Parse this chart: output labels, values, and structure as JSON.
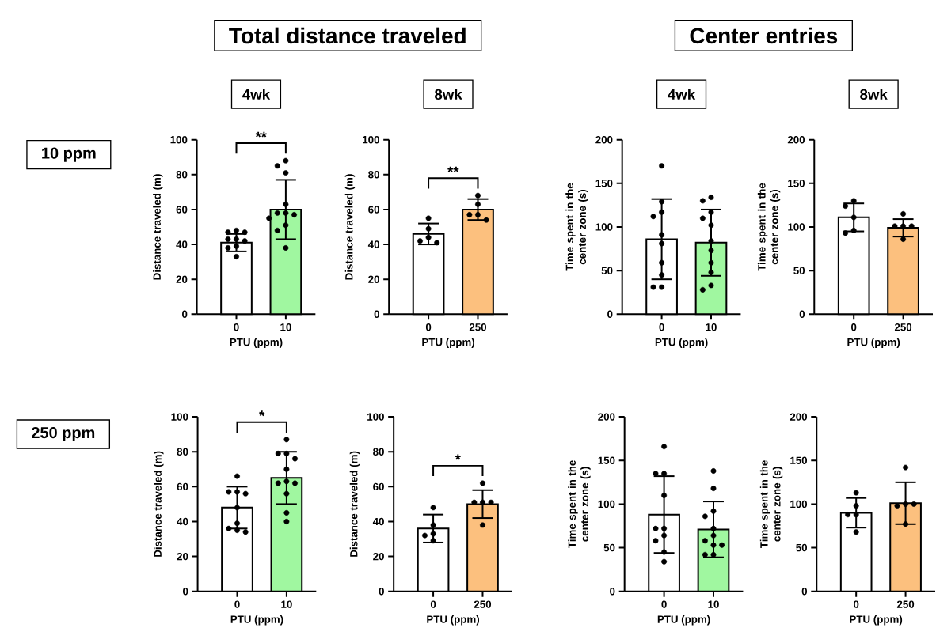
{
  "chart_data": [
    {
      "type": "bar",
      "title": "4wk",
      "categories": [
        "0",
        "10"
      ],
      "xlabel": "PTU (ppm)",
      "ylabel": "Distance traveled (m)",
      "ylim": [
        0,
        100
      ],
      "yticks": [
        0,
        20,
        40,
        60,
        80,
        100
      ],
      "annotations": [
        "**"
      ],
      "series": [
        {
          "type": "bar",
          "colors": [
            "#ffffff",
            "#a0f7a0"
          ],
          "values": [
            41,
            60
          ],
          "errors": [
            5,
            17
          ]
        },
        {
          "type": "scatter",
          "color": "#000000",
          "x": [
            "0",
            "0",
            "0",
            "0",
            "0",
            "0",
            "0",
            "0",
            "0",
            "10",
            "10",
            "10",
            "10",
            "10",
            "10",
            "10",
            "10",
            "10",
            "10",
            "10"
          ],
          "values": [
            48,
            47,
            47,
            43,
            43,
            42,
            39,
            38,
            33,
            88,
            85,
            81,
            63,
            58,
            58,
            57,
            55,
            51,
            48,
            38
          ]
        }
      ]
    },
    {
      "type": "bar",
      "title": "8wk",
      "categories": [
        "0",
        "250"
      ],
      "xlabel": "PTU (ppm)",
      "ylabel": "Distance traveled (m)",
      "ylim": [
        0,
        100
      ],
      "yticks": [
        0,
        20,
        40,
        60,
        80,
        100
      ],
      "annotations": [
        "**"
      ],
      "series": [
        {
          "type": "bar",
          "colors": [
            "#ffffff",
            "#fcc07e"
          ],
          "values": [
            46,
            60
          ],
          "errors": [
            6,
            6
          ]
        },
        {
          "type": "scatter",
          "color": "#000000",
          "x": [
            "0",
            "0",
            "0",
            "0",
            "0",
            "250",
            "250",
            "250",
            "250",
            "250"
          ],
          "values": [
            55,
            49,
            44,
            42,
            41,
            68,
            63,
            57,
            57,
            54
          ]
        }
      ]
    },
    {
      "type": "bar",
      "title": "4wk",
      "categories": [
        "0",
        "10"
      ],
      "xlabel": "PTU (ppm)",
      "ylabel": "Time spent in the center zone (s)",
      "ylim": [
        0,
        200
      ],
      "yticks": [
        0,
        50,
        100,
        150,
        200
      ],
      "series": [
        {
          "type": "bar",
          "colors": [
            "#ffffff",
            "#a0f7a0"
          ],
          "values": [
            86,
            82
          ],
          "errors": [
            46,
            38
          ]
        },
        {
          "type": "scatter",
          "color": "#000000",
          "x": [
            "0",
            "0",
            "0",
            "0",
            "0",
            "0",
            "0",
            "0",
            "0",
            "0",
            "10",
            "10",
            "10",
            "10",
            "10",
            "10",
            "10",
            "10",
            "10",
            "10",
            "10"
          ],
          "values": [
            170,
            129,
            117,
            112,
            91,
            81,
            59,
            45,
            31,
            31,
            134,
            130,
            117,
            110,
            102,
            84,
            73,
            59,
            48,
            33,
            28
          ]
        }
      ]
    },
    {
      "type": "bar",
      "title": "8wk",
      "categories": [
        "0",
        "250"
      ],
      "xlabel": "PTU (ppm)",
      "ylabel": "Time spent in the center zone (s)",
      "ylim": [
        0,
        200
      ],
      "yticks": [
        0,
        50,
        100,
        150,
        200
      ],
      "series": [
        {
          "type": "bar",
          "colors": [
            "#ffffff",
            "#fcc07e"
          ],
          "values": [
            111,
            99
          ],
          "errors": [
            16,
            10
          ]
        },
        {
          "type": "scatter",
          "color": "#000000",
          "x": [
            "0",
            "0",
            "0",
            "0",
            "0",
            "250",
            "250",
            "250",
            "250",
            "250"
          ],
          "values": [
            130,
            124,
            111,
            96,
            93,
            115,
            101,
            101,
            101,
            86
          ]
        }
      ]
    },
    {
      "type": "bar",
      "categories": [
        "0",
        "10"
      ],
      "xlabel": "PTU (ppm)",
      "ylabel": "Distance traveled (m)",
      "ylim": [
        0,
        100
      ],
      "yticks": [
        0,
        20,
        40,
        60,
        80,
        100
      ],
      "annotations": [
        "*"
      ],
      "series": [
        {
          "type": "bar",
          "colors": [
            "#ffffff",
            "#a0f7a0"
          ],
          "values": [
            48,
            65
          ],
          "errors": [
            12,
            15
          ]
        },
        {
          "type": "scatter",
          "color": "#000000",
          "x": [
            "0",
            "0",
            "0",
            "0",
            "0",
            "0",
            "0",
            "0",
            "0",
            "10",
            "10",
            "10",
            "10",
            "10",
            "10",
            "10",
            "10",
            "10",
            "10",
            "10"
          ],
          "values": [
            66,
            57,
            57,
            56,
            48,
            39,
            36,
            35,
            34,
            87,
            79,
            79,
            76,
            70,
            63,
            62,
            62,
            56,
            45,
            40
          ]
        }
      ]
    },
    {
      "type": "bar",
      "categories": [
        "0",
        "250"
      ],
      "xlabel": "PTU (ppm)",
      "ylabel": "Distance traveled (m)",
      "ylim": [
        0,
        100
      ],
      "yticks": [
        0,
        20,
        40,
        60,
        80,
        100
      ],
      "annotations": [
        "*"
      ],
      "series": [
        {
          "type": "bar",
          "colors": [
            "#ffffff",
            "#fcc07e"
          ],
          "values": [
            36,
            50
          ],
          "errors": [
            8,
            8
          ]
        },
        {
          "type": "scatter",
          "color": "#000000",
          "x": [
            "0",
            "0",
            "0",
            "0",
            "0",
            "250",
            "250",
            "250",
            "250",
            "250"
          ],
          "values": [
            48,
            38,
            33,
            32,
            29,
            62,
            51,
            51,
            51,
            38
          ]
        }
      ]
    },
    {
      "type": "bar",
      "categories": [
        "0",
        "10"
      ],
      "xlabel": "PTU (ppm)",
      "ylabel": "Time spent in the center zone (s)",
      "ylim": [
        0,
        200
      ],
      "yticks": [
        0,
        50,
        100,
        150,
        200
      ],
      "series": [
        {
          "type": "bar",
          "colors": [
            "#ffffff",
            "#a0f7a0"
          ],
          "values": [
            88,
            71
          ],
          "errors": [
            44,
            32
          ]
        },
        {
          "type": "scatter",
          "color": "#000000",
          "x": [
            "0",
            "0",
            "0",
            "0",
            "0",
            "0",
            "0",
            "0",
            "0",
            "0",
            "10",
            "10",
            "10",
            "10",
            "10",
            "10",
            "10",
            "10",
            "10",
            "10",
            "10"
          ],
          "values": [
            166,
            135,
            135,
            110,
            72,
            72,
            64,
            58,
            45,
            34,
            138,
            118,
            92,
            86,
            72,
            64,
            58,
            53,
            53,
            42,
            42
          ]
        }
      ]
    },
    {
      "type": "bar",
      "categories": [
        "0",
        "250"
      ],
      "xlabel": "PTU (ppm)",
      "ylabel": "Time spent in the center zone (s)",
      "ylim": [
        0,
        200
      ],
      "yticks": [
        0,
        50,
        100,
        150,
        200
      ],
      "series": [
        {
          "type": "bar",
          "colors": [
            "#ffffff",
            "#fcc07e"
          ],
          "values": [
            90,
            101
          ],
          "errors": [
            17,
            24
          ]
        },
        {
          "type": "scatter",
          "color": "#000000",
          "x": [
            "0",
            "0",
            "0",
            "0",
            "0",
            "250",
            "250",
            "250",
            "250",
            "250"
          ],
          "values": [
            113,
            98,
            88,
            88,
            68,
            142,
            100,
            98,
            100,
            77
          ]
        }
      ]
    },
    {
      "type": "other",
      "annotations": [
        "Total distance traveled",
        "Center entries",
        "10 ppm",
        "250 ppm"
      ]
    }
  ]
}
